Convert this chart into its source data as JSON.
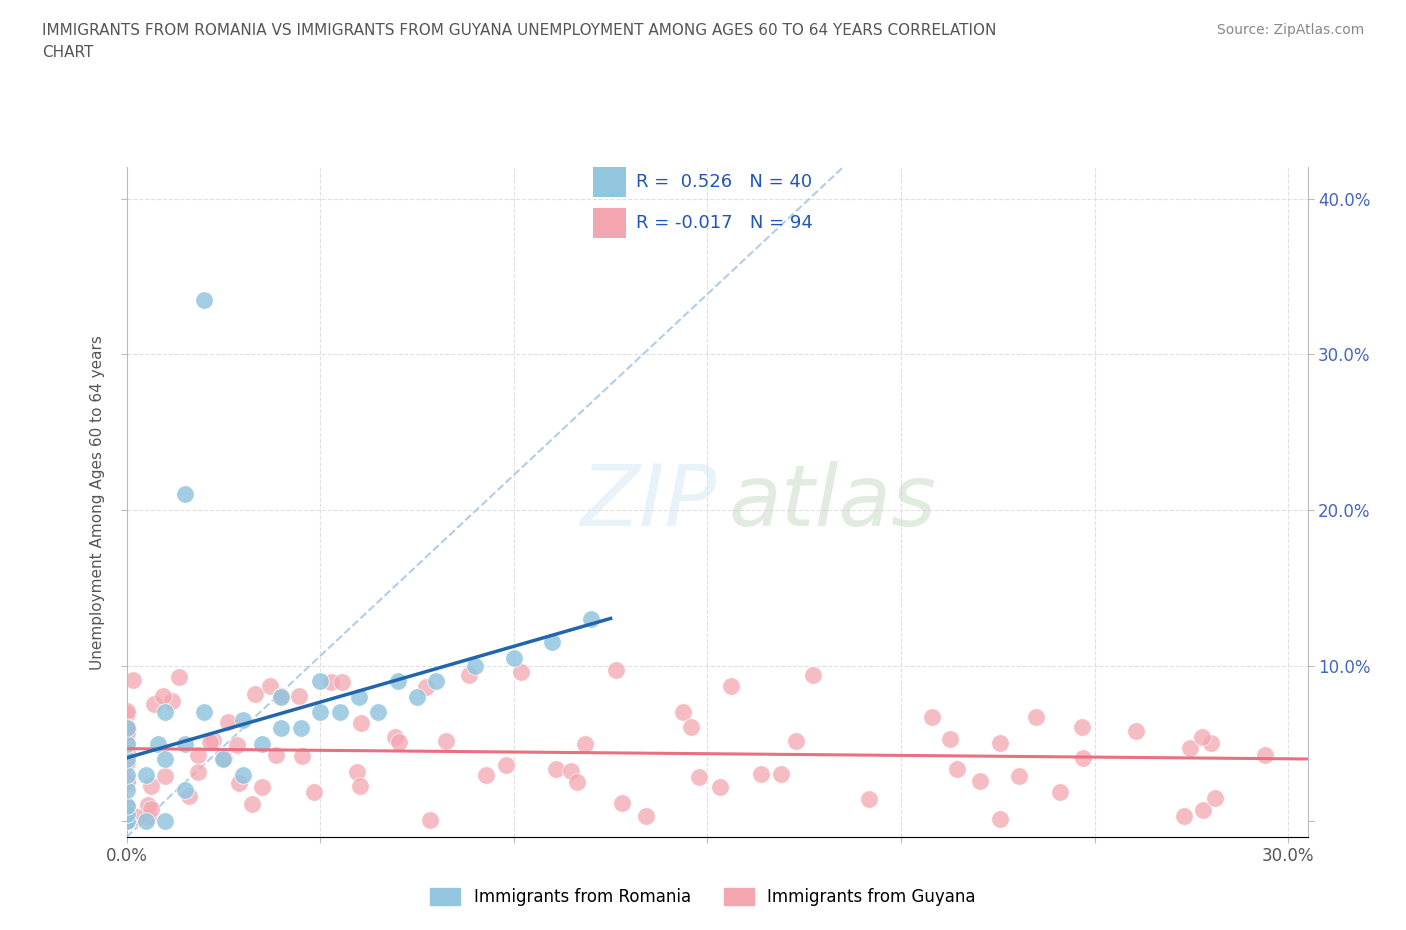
{
  "title_line1": "IMMIGRANTS FROM ROMANIA VS IMMIGRANTS FROM GUYANA UNEMPLOYMENT AMONG AGES 60 TO 64 YEARS CORRELATION",
  "title_line2": "CHART",
  "source": "Source: ZipAtlas.com",
  "ylabel": "Unemployment Among Ages 60 to 64 years",
  "xlim": [
    0.0,
    0.305
  ],
  "ylim": [
    -0.01,
    0.42
  ],
  "romania_color": "#92c5de",
  "guyana_color": "#f4a6b0",
  "romania_line_color": "#2166ac",
  "guyana_line_color": "#e87080",
  "dashed_line_color": "#a8c8e8",
  "background_color": "#ffffff",
  "grid_color": "#e0e0e0",
  "romania_R": 0.526,
  "romania_N": 40,
  "guyana_R": -0.017,
  "guyana_N": 94
}
